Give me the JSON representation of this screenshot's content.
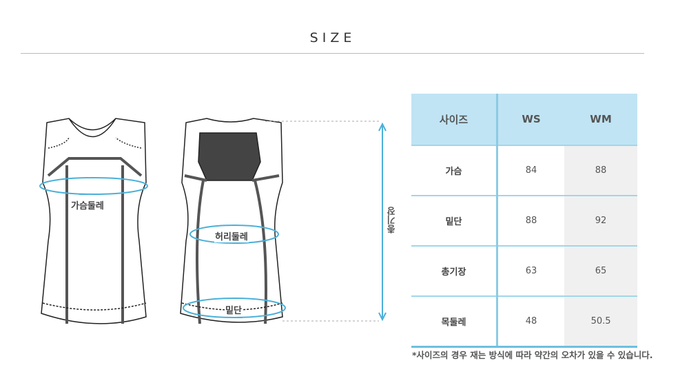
{
  "title": "SIZE",
  "labels": {
    "chest": "가슴둘레",
    "waist": "허리둘레",
    "hem": "밑단",
    "length": "총기장"
  },
  "table": {
    "headers": [
      "사이즈",
      "WS",
      "WM"
    ],
    "rows": [
      {
        "label": "가슴",
        "ws": "84",
        "wm": "88"
      },
      {
        "label": "밑단",
        "ws": "88",
        "wm": "92"
      },
      {
        "label": "총기장",
        "ws": "63",
        "wm": "65"
      },
      {
        "label": "목둘레",
        "ws": "48",
        "wm": "50.5"
      }
    ]
  },
  "note": "*사이즈의 경우 재는 방식에 따라 약간의 오차가 있을 수 있습니다.",
  "colors": {
    "accent": "#4ab0d9",
    "header_bg": "#c0e4f4"
  }
}
